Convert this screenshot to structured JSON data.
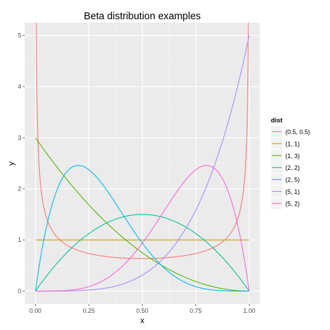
{
  "chart_data": {
    "type": "line",
    "title": "Beta distribution examples",
    "xlabel": "x",
    "ylabel": "y",
    "xlim": [
      -0.05,
      1.05
    ],
    "ylim": [
      -0.25,
      5.25
    ],
    "x_ticks": [
      0,
      0.25,
      0.5,
      0.75,
      1
    ],
    "x_tick_labels": [
      "0.00",
      "0.25",
      "0.50",
      "0.75",
      "1.00"
    ],
    "y_ticks": [
      0,
      1,
      2,
      3,
      4,
      5
    ],
    "y_tick_labels": [
      "0",
      "1",
      "2",
      "3",
      "4",
      "5"
    ],
    "grid": true,
    "panel_background": "#ebebeb",
    "legend": {
      "title": "dist",
      "placement": "right"
    },
    "series": [
      {
        "name": "(0.5, 0.5)",
        "alpha": 0.5,
        "beta": 0.5,
        "color": "#f8766d"
      },
      {
        "name": "(1, 1)",
        "alpha": 1,
        "beta": 1,
        "color": "#c49a00"
      },
      {
        "name": "(1, 3)",
        "alpha": 1,
        "beta": 3,
        "color": "#53b400"
      },
      {
        "name": "(2, 2)",
        "alpha": 2,
        "beta": 2,
        "color": "#00c094"
      },
      {
        "name": "(2, 5)",
        "alpha": 2,
        "beta": 5,
        "color": "#00b6eb"
      },
      {
        "name": "(5, 1)",
        "alpha": 5,
        "beta": 1,
        "color": "#a58aff"
      },
      {
        "name": "(5, 2)",
        "alpha": 5,
        "beta": 2,
        "color": "#fb61d7"
      }
    ]
  }
}
